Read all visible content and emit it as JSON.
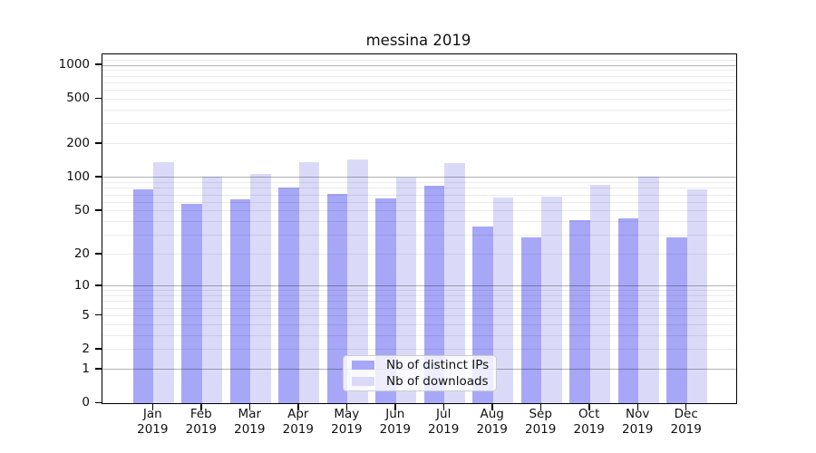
{
  "chart_data": {
    "type": "bar",
    "title": "messina 2019",
    "yscale": "log1p",
    "ylim": [
      0,
      1210
    ],
    "categories": [
      "Jan",
      "Feb",
      "Mar",
      "Apr",
      "May",
      "Jun",
      "Jul",
      "Aug",
      "Sep",
      "Oct",
      "Nov",
      "Dec"
    ],
    "year_label": "2019",
    "series": [
      {
        "name": "Nb of distinct IPs",
        "color": "#a7a7f7",
        "values": [
          78,
          58,
          64,
          81,
          72,
          65,
          84,
          36,
          29,
          41,
          43,
          29
        ]
      },
      {
        "name": "Nb of downloads",
        "color": "#dadaf8",
        "values": [
          136,
          102,
          108,
          138,
          145,
          100,
          135,
          66,
          68,
          86,
          101,
          78
        ]
      }
    ],
    "y_ticks": [
      1000,
      500,
      200,
      100,
      50,
      20,
      10,
      5,
      2,
      1,
      0
    ],
    "y_major_gridlines": [
      1,
      10,
      100,
      1000
    ],
    "y_minor_gridlines": [
      2,
      3,
      4,
      5,
      6,
      7,
      8,
      9,
      20,
      30,
      40,
      50,
      60,
      70,
      80,
      90,
      200,
      300,
      400,
      500,
      600,
      700,
      800,
      900,
      1100
    ],
    "grid": "both",
    "legend_position": "lower center"
  }
}
